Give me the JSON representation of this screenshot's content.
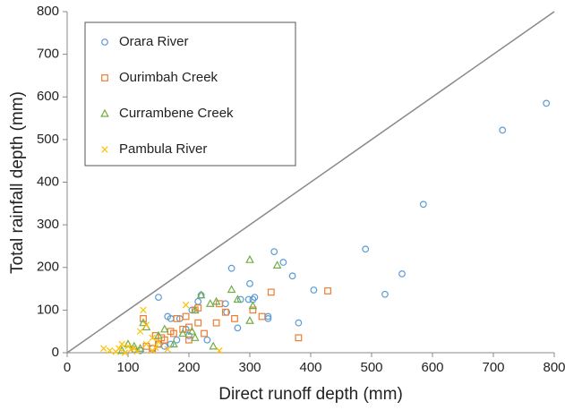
{
  "chart_data": {
    "type": "scatter",
    "x_label": "Direct runoff depth (mm)",
    "y_label": "Total rainfall depth (mm)",
    "xlim": [
      0,
      800
    ],
    "ylim": [
      0,
      800
    ],
    "xticks": [
      0,
      100,
      200,
      300,
      400,
      500,
      600,
      700,
      800
    ],
    "yticks": [
      0,
      100,
      200,
      300,
      400,
      500,
      600,
      700,
      800
    ],
    "grid": false,
    "legend": "upper-left",
    "series": [
      {
        "name": "Orara River",
        "color": "#5b9bd5",
        "marker": "circle",
        "x": [
          787,
          715,
          585,
          490,
          550,
          522,
          405,
          380,
          370,
          355,
          340,
          330,
          330,
          308,
          305,
          300,
          298,
          285,
          270,
          260,
          262,
          280,
          220,
          215,
          205,
          150,
          165,
          170,
          185,
          195,
          230,
          170,
          180,
          160,
          150,
          140,
          120,
          110,
          200
        ],
        "y": [
          585,
          522,
          348,
          243,
          185,
          137,
          147,
          70,
          180,
          212,
          237,
          80,
          85,
          130,
          125,
          162,
          125,
          125,
          198,
          115,
          95,
          58,
          135,
          120,
          100,
          130,
          85,
          80,
          80,
          55,
          30,
          20,
          30,
          15,
          20,
          10,
          5,
          8,
          40
        ]
      },
      {
        "name": "Ourimbah Creek",
        "color": "#ed7d31",
        "marker": "square",
        "x": [
          428,
          335,
          320,
          305,
          380,
          275,
          245,
          260,
          250,
          210,
          215,
          195,
          190,
          200,
          215,
          180,
          170,
          175,
          160,
          150,
          140,
          125,
          225,
          200,
          130,
          145,
          155
        ],
        "y": [
          145,
          142,
          85,
          100,
          35,
          80,
          70,
          95,
          115,
          100,
          105,
          85,
          55,
          60,
          70,
          80,
          50,
          45,
          30,
          20,
          10,
          80,
          45,
          30,
          15,
          40,
          35
        ]
      },
      {
        "name": "Currambene Creek",
        "color": "#70ad47",
        "marker": "triangle",
        "x": [
          300,
          345,
          280,
          305,
          300,
          270,
          245,
          235,
          220,
          210,
          205,
          210,
          240,
          130,
          125,
          150,
          160,
          175,
          100,
          110,
          120,
          90,
          190
        ],
        "y": [
          218,
          205,
          125,
          110,
          75,
          148,
          120,
          115,
          135,
          100,
          50,
          35,
          15,
          60,
          70,
          40,
          55,
          20,
          20,
          15,
          10,
          5,
          45
        ]
      },
      {
        "name": "Pambula River",
        "color": "#ffc000",
        "marker": "x",
        "x": [
          125,
          195,
          130,
          120,
          140,
          150,
          130,
          110,
          100,
          90,
          85,
          70,
          60,
          80,
          95,
          115,
          140,
          165,
          250,
          145,
          105
        ],
        "y": [
          100,
          112,
          65,
          50,
          35,
          25,
          20,
          10,
          15,
          20,
          10,
          5,
          10,
          2,
          0,
          3,
          5,
          8,
          5,
          12,
          8
        ]
      }
    ]
  }
}
